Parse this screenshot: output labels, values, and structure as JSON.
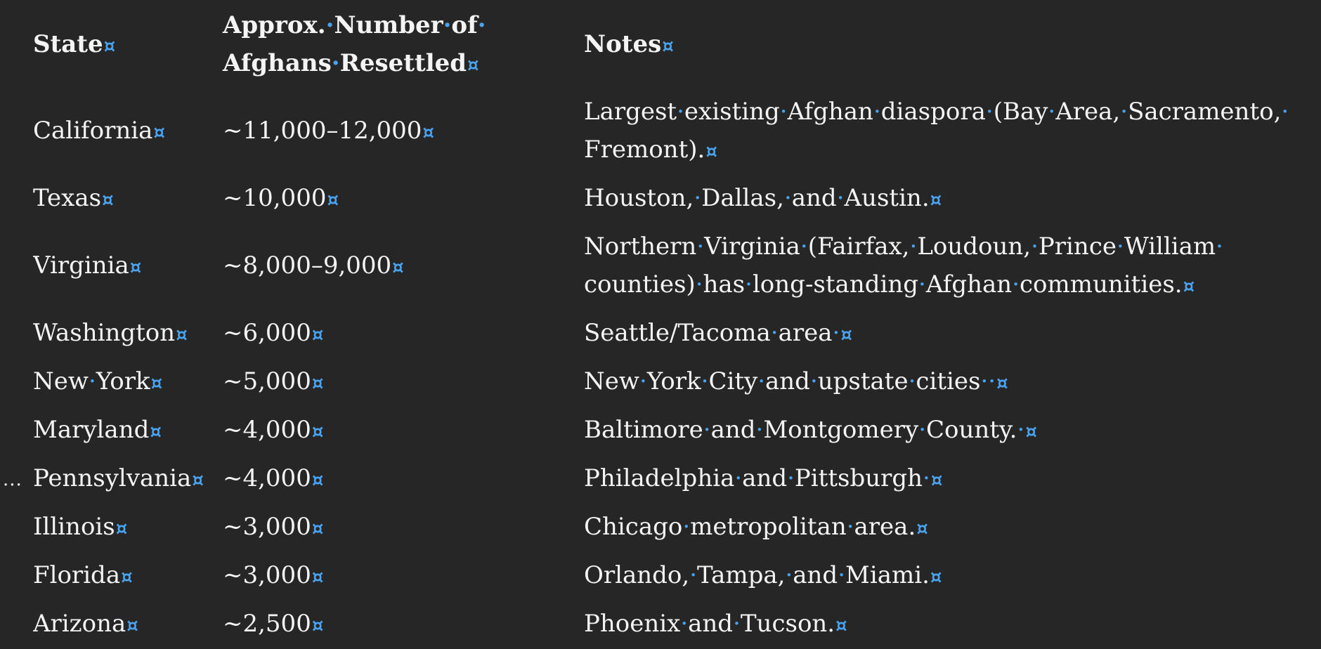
{
  "document": {
    "formatting_marks_color": "#4aa3f0",
    "background_color": "#262626",
    "collapsed_indicator": "...",
    "table": {
      "headers": [
        "State",
        "Approx. Number of Afghans Resettled",
        "Notes"
      ],
      "rows": [
        [
          "California",
          "~11,000–12,000",
          "Largest existing Afghan diaspora (Bay Area, Sacramento, Fremont)."
        ],
        [
          "Texas",
          "~10,000",
          "Houston, Dallas, and Austin."
        ],
        [
          "Virginia",
          "~8,000–9,000",
          "Northern Virginia (Fairfax, Loudoun, Prince William counties) has long-standing Afghan communities."
        ],
        [
          "Washington",
          "~6,000",
          "Seattle/Tacoma area "
        ],
        [
          "New York",
          "~5,000",
          "New York City and upstate cities  "
        ],
        [
          "Maryland",
          "~4,000",
          "Baltimore and Montgomery County. "
        ],
        [
          "Pennsylvania",
          "~4,000",
          "Philadelphia and Pittsburgh "
        ],
        [
          "Illinois",
          "~3,000",
          "Chicago metropolitan area."
        ],
        [
          "Florida",
          "~3,000",
          "Orlando, Tampa, and Miami."
        ],
        [
          "Arizona",
          "~2,500",
          "Phoenix and Tucson."
        ]
      ]
    }
  }
}
